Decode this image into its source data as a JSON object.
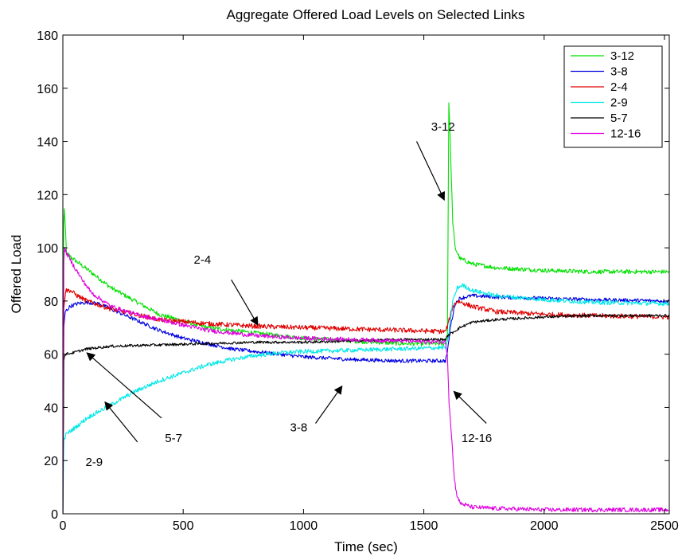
{
  "chart_data": {
    "type": "line",
    "title": "Aggregate Offered Load Levels on Selected Links",
    "xlabel": "Time (sec)",
    "ylabel": "Offered Load",
    "xlim": [
      0,
      2520
    ],
    "ylim": [
      0,
      180
    ],
    "xticks": [
      0,
      500,
      1000,
      1500,
      2000,
      2500
    ],
    "yticks": [
      0,
      20,
      40,
      60,
      80,
      100,
      120,
      140,
      160,
      180
    ],
    "grid": false,
    "legend": "top-right",
    "series": [
      {
        "name": "3-12",
        "color": "#00e000",
        "noise": 0.8,
        "points": [
          [
            0,
            0
          ],
          [
            3,
            108
          ],
          [
            6,
            115
          ],
          [
            15,
            98
          ],
          [
            40,
            96
          ],
          [
            100,
            92
          ],
          [
            200,
            85
          ],
          [
            400,
            75
          ],
          [
            600,
            70
          ],
          [
            800,
            68
          ],
          [
            1000,
            66
          ],
          [
            1200,
            65
          ],
          [
            1400,
            64
          ],
          [
            1590,
            64
          ],
          [
            1598,
            65
          ],
          [
            1601,
            110
          ],
          [
            1604,
            155
          ],
          [
            1610,
            140
          ],
          [
            1620,
            110
          ],
          [
            1630,
            100
          ],
          [
            1650,
            96
          ],
          [
            1700,
            94
          ],
          [
            1800,
            92.5
          ],
          [
            2000,
            91.5
          ],
          [
            2200,
            91
          ],
          [
            2520,
            91
          ]
        ]
      },
      {
        "name": "3-8",
        "color": "#0000e0",
        "noise": 0.7,
        "points": [
          [
            0,
            0
          ],
          [
            4,
            70
          ],
          [
            10,
            76
          ],
          [
            30,
            78
          ],
          [
            60,
            79
          ],
          [
            100,
            79.5
          ],
          [
            150,
            79
          ],
          [
            200,
            77
          ],
          [
            300,
            73
          ],
          [
            400,
            69
          ],
          [
            500,
            66
          ],
          [
            600,
            64
          ],
          [
            700,
            62
          ],
          [
            800,
            61
          ],
          [
            900,
            60
          ],
          [
            1000,
            59
          ],
          [
            1100,
            58.5
          ],
          [
            1200,
            58
          ],
          [
            1400,
            57.5
          ],
          [
            1590,
            57.5
          ],
          [
            1600,
            62
          ],
          [
            1610,
            70
          ],
          [
            1630,
            79
          ],
          [
            1650,
            81
          ],
          [
            1700,
            82
          ],
          [
            1800,
            81.5
          ],
          [
            2000,
            81
          ],
          [
            2200,
            80.5
          ],
          [
            2520,
            80
          ]
        ]
      },
      {
        "name": "2-4",
        "color": "#e00000",
        "noise": 0.9,
        "points": [
          [
            0,
            0
          ],
          [
            4,
            78
          ],
          [
            12,
            84
          ],
          [
            30,
            84
          ],
          [
            60,
            82
          ],
          [
            100,
            80
          ],
          [
            200,
            77
          ],
          [
            400,
            73
          ],
          [
            600,
            71.5
          ],
          [
            800,
            70.5
          ],
          [
            1000,
            70
          ],
          [
            1200,
            69.5
          ],
          [
            1400,
            69
          ],
          [
            1590,
            68.5
          ],
          [
            1600,
            71
          ],
          [
            1620,
            78
          ],
          [
            1640,
            80
          ],
          [
            1700,
            78
          ],
          [
            1800,
            76
          ],
          [
            2000,
            75
          ],
          [
            2200,
            74.5
          ],
          [
            2520,
            74
          ]
        ]
      },
      {
        "name": "2-9",
        "color": "#00e8e8",
        "noise": 0.8,
        "points": [
          [
            0,
            0
          ],
          [
            4,
            28
          ],
          [
            15,
            30
          ],
          [
            60,
            33
          ],
          [
            100,
            36
          ],
          [
            200,
            41
          ],
          [
            300,
            46
          ],
          [
            400,
            50
          ],
          [
            500,
            53
          ],
          [
            600,
            56
          ],
          [
            700,
            58
          ],
          [
            800,
            59.5
          ],
          [
            900,
            60.5
          ],
          [
            1000,
            61
          ],
          [
            1200,
            61.5
          ],
          [
            1400,
            62
          ],
          [
            1590,
            62.5
          ],
          [
            1600,
            65
          ],
          [
            1620,
            80
          ],
          [
            1640,
            85
          ],
          [
            1660,
            86
          ],
          [
            1700,
            84
          ],
          [
            1800,
            82
          ],
          [
            2000,
            80.5
          ],
          [
            2200,
            79.5
          ],
          [
            2520,
            79
          ]
        ]
      },
      {
        "name": "5-7",
        "color": "#000000",
        "noise": 0.5,
        "points": [
          [
            0,
            0
          ],
          [
            4,
            58
          ],
          [
            10,
            60
          ],
          [
            40,
            60.5
          ],
          [
            100,
            62
          ],
          [
            200,
            63
          ],
          [
            400,
            63.5
          ],
          [
            600,
            64
          ],
          [
            800,
            64.5
          ],
          [
            1000,
            64.5
          ],
          [
            1200,
            65
          ],
          [
            1400,
            65.5
          ],
          [
            1590,
            65.5
          ],
          [
            1600,
            67
          ],
          [
            1650,
            70
          ],
          [
            1700,
            72
          ],
          [
            1800,
            73
          ],
          [
            2000,
            74
          ],
          [
            2200,
            74.5
          ],
          [
            2520,
            74.5
          ]
        ]
      },
      {
        "name": "12-16",
        "color": "#e000e0",
        "noise": 0.8,
        "points": [
          [
            0,
            0
          ],
          [
            4,
            95
          ],
          [
            8,
            100
          ],
          [
            15,
            98
          ],
          [
            40,
            94
          ],
          [
            80,
            88
          ],
          [
            120,
            83
          ],
          [
            200,
            78
          ],
          [
            300,
            75
          ],
          [
            400,
            73
          ],
          [
            500,
            71
          ],
          [
            600,
            69
          ],
          [
            700,
            68
          ],
          [
            800,
            67
          ],
          [
            1000,
            66
          ],
          [
            1200,
            65.5
          ],
          [
            1400,
            65
          ],
          [
            1590,
            64.5
          ],
          [
            1598,
            60
          ],
          [
            1605,
            42
          ],
          [
            1615,
            30
          ],
          [
            1625,
            15
          ],
          [
            1635,
            8
          ],
          [
            1650,
            4
          ],
          [
            1700,
            2.5
          ],
          [
            1800,
            2
          ],
          [
            2000,
            1.5
          ],
          [
            2200,
            1.5
          ],
          [
            2520,
            1.5
          ]
        ]
      }
    ],
    "annotations": [
      {
        "label": "3-12",
        "text_at": [
          1580,
          144
        ],
        "arrow_from": [
          1470,
          140
        ],
        "arrow_to": [
          1585,
          118
        ]
      },
      {
        "label": "2-4",
        "text_at": [
          580,
          94
        ],
        "arrow_from": [
          700,
          88
        ],
        "arrow_to": [
          810,
          71
        ]
      },
      {
        "label": "5-7",
        "text_at": [
          460,
          27
        ],
        "arrow_from": [
          410,
          36
        ],
        "arrow_to": [
          100,
          60.5
        ]
      },
      {
        "label": "3-8",
        "text_at": [
          980,
          31
        ],
        "arrow_from": [
          1050,
          34
        ],
        "arrow_to": [
          1160,
          48
        ]
      },
      {
        "label": "2-9",
        "text_at": [
          130,
          18
        ],
        "arrow_from": [
          310,
          27
        ],
        "arrow_to": [
          175,
          42
        ]
      },
      {
        "label": "12-16",
        "text_at": [
          1720,
          27
        ],
        "arrow_from": [
          1760,
          34
        ],
        "arrow_to": [
          1625,
          46
        ]
      }
    ]
  }
}
